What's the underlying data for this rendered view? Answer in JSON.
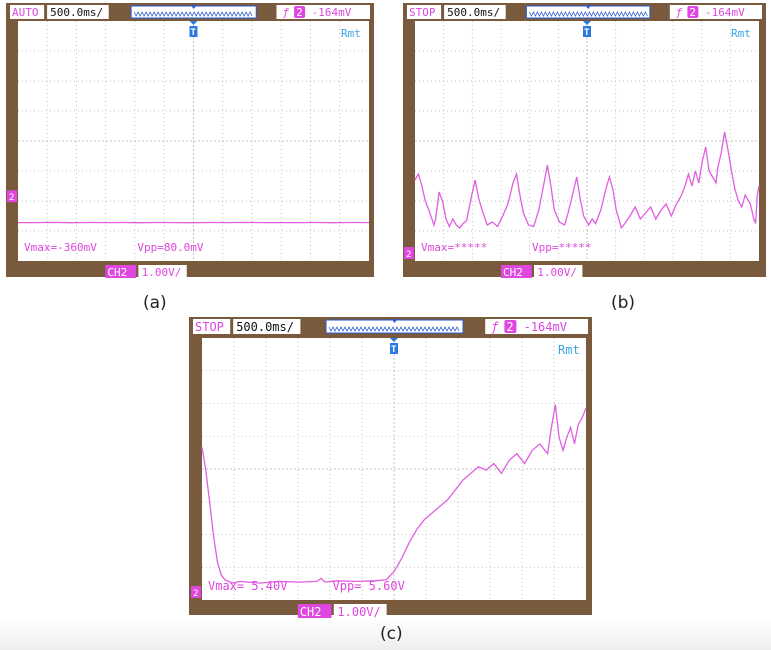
{
  "scopes": [
    {
      "id": "a",
      "status": "AUTO",
      "timebase": "500.0ms/",
      "trigger_level": "-164mV",
      "trigger_source": "2",
      "mode": "Rmt",
      "trigger_marker": "T",
      "channel_marker": "2",
      "vmax_text": "Vmax=-360mV",
      "vpp_text": "Vpp=80.0mV",
      "channel_label": "CH2",
      "channel_scale": "1.00V/",
      "caption": "(a)",
      "waveform": [
        [
          0,
          0.88
        ],
        [
          50,
          0.88
        ],
        [
          100,
          0.885
        ],
        [
          150,
          0.878
        ],
        [
          200,
          0.882
        ],
        [
          250,
          0.88
        ],
        [
          300,
          0.884
        ],
        [
          350,
          0.878
        ],
        [
          400,
          0.882
        ],
        [
          450,
          0.88
        ],
        [
          500,
          0.878
        ],
        [
          550,
          0.882
        ],
        [
          600,
          0.88
        ],
        [
          650,
          0.885
        ],
        [
          700,
          0.879
        ],
        [
          750,
          0.881
        ],
        [
          800,
          0.88
        ],
        [
          850,
          0.883
        ],
        [
          900,
          0.878
        ],
        [
          950,
          0.882
        ],
        [
          1000,
          0.88
        ]
      ]
    },
    {
      "id": "b",
      "status": "STOP",
      "timebase": "500.0ms/",
      "trigger_level": "-164mV",
      "trigger_source": "2",
      "mode": "Rmt",
      "trigger_marker": "T",
      "channel_marker": "2",
      "vmax_text": "Vmax=*****",
      "vpp_text": "Vpp=*****",
      "channel_label": "CH2",
      "channel_scale": "1.00V/",
      "caption": "(b)",
      "waveform": [
        [
          0,
          2.3
        ],
        [
          10,
          2.5
        ],
        [
          20,
          2.1
        ],
        [
          30,
          1.6
        ],
        [
          40,
          1.3
        ],
        [
          55,
          0.8
        ],
        [
          60,
          1.0
        ],
        [
          70,
          1.9
        ],
        [
          80,
          1.6
        ],
        [
          90,
          1.0
        ],
        [
          100,
          0.75
        ],
        [
          110,
          1.0
        ],
        [
          120,
          0.8
        ],
        [
          130,
          0.7
        ],
        [
          140,
          0.85
        ],
        [
          150,
          0.95
        ],
        [
          165,
          1.8
        ],
        [
          175,
          2.3
        ],
        [
          185,
          1.7
        ],
        [
          195,
          1.3
        ],
        [
          210,
          0.8
        ],
        [
          225,
          0.9
        ],
        [
          240,
          0.75
        ],
        [
          255,
          1.1
        ],
        [
          270,
          1.5
        ],
        [
          285,
          2.2
        ],
        [
          295,
          2.5
        ],
        [
          305,
          1.8
        ],
        [
          315,
          1.2
        ],
        [
          330,
          0.8
        ],
        [
          345,
          0.75
        ],
        [
          360,
          1.3
        ],
        [
          375,
          2.2
        ],
        [
          385,
          2.8
        ],
        [
          395,
          2.1
        ],
        [
          405,
          1.3
        ],
        [
          420,
          0.9
        ],
        [
          435,
          0.8
        ],
        [
          445,
          1.2
        ],
        [
          460,
          1.9
        ],
        [
          470,
          2.4
        ],
        [
          480,
          1.7
        ],
        [
          490,
          1.1
        ],
        [
          505,
          0.8
        ],
        [
          515,
          1.0
        ],
        [
          525,
          0.85
        ],
        [
          540,
          1.3
        ],
        [
          555,
          2.0
        ],
        [
          565,
          2.4
        ],
        [
          575,
          2.0
        ],
        [
          585,
          1.3
        ],
        [
          600,
          0.7
        ],
        [
          610,
          0.85
        ],
        [
          625,
          1.1
        ],
        [
          640,
          1.4
        ],
        [
          655,
          1.0
        ],
        [
          670,
          1.2
        ],
        [
          685,
          1.4
        ],
        [
          700,
          1.0
        ],
        [
          715,
          1.3
        ],
        [
          730,
          1.5
        ],
        [
          745,
          1.1
        ],
        [
          760,
          1.5
        ],
        [
          775,
          1.8
        ],
        [
          785,
          2.1
        ],
        [
          795,
          2.5
        ],
        [
          805,
          2.1
        ],
        [
          815,
          2.6
        ],
        [
          825,
          2.2
        ],
        [
          835,
          2.9
        ],
        [
          845,
          3.4
        ],
        [
          855,
          2.6
        ],
        [
          865,
          2.4
        ],
        [
          875,
          2.2
        ],
        [
          880,
          2.7
        ],
        [
          890,
          3.2
        ],
        [
          900,
          3.9
        ],
        [
          910,
          3.3
        ],
        [
          920,
          2.6
        ],
        [
          930,
          2.0
        ],
        [
          940,
          1.6
        ],
        [
          950,
          1.4
        ],
        [
          960,
          1.8
        ],
        [
          975,
          1.5
        ],
        [
          985,
          1.0
        ],
        [
          990,
          0.85
        ],
        [
          995,
          1.8
        ],
        [
          1000,
          2.1
        ]
      ]
    },
    {
      "id": "c",
      "status": "STOP",
      "timebase": "500.0ms/",
      "trigger_level": "-164mV",
      "trigger_source": "2",
      "mode": "Rmt",
      "trigger_marker": "T",
      "channel_marker": "2",
      "vmax_text": "Vmax= 5.40V",
      "vpp_text": "Vpp= 5.60V",
      "channel_label": "CH2",
      "channel_scale": "1.00V/",
      "caption": "(c)",
      "waveform": [
        [
          0,
          4.3
        ],
        [
          10,
          3.6
        ],
        [
          20,
          2.6
        ],
        [
          30,
          1.6
        ],
        [
          40,
          0.8
        ],
        [
          50,
          0.4
        ],
        [
          60,
          0.25
        ],
        [
          80,
          0.15
        ],
        [
          100,
          0.2
        ],
        [
          150,
          0.15
        ],
        [
          200,
          0.2
        ],
        [
          250,
          0.18
        ],
        [
          300,
          0.2
        ],
        [
          310,
          0.3
        ],
        [
          320,
          0.18
        ],
        [
          350,
          0.22
        ],
        [
          400,
          0.2
        ],
        [
          450,
          0.22
        ],
        [
          480,
          0.25
        ],
        [
          500,
          0.5
        ],
        [
          520,
          0.9
        ],
        [
          540,
          1.4
        ],
        [
          560,
          1.8
        ],
        [
          580,
          2.1
        ],
        [
          600,
          2.3
        ],
        [
          620,
          2.5
        ],
        [
          640,
          2.7
        ],
        [
          660,
          3.0
        ],
        [
          680,
          3.3
        ],
        [
          700,
          3.5
        ],
        [
          720,
          3.7
        ],
        [
          740,
          3.6
        ],
        [
          760,
          3.8
        ],
        [
          780,
          3.5
        ],
        [
          800,
          3.9
        ],
        [
          820,
          4.1
        ],
        [
          840,
          3.8
        ],
        [
          860,
          4.2
        ],
        [
          880,
          4.4
        ],
        [
          900,
          4.1
        ],
        [
          910,
          4.9
        ],
        [
          920,
          5.6
        ],
        [
          930,
          4.6
        ],
        [
          940,
          4.2
        ],
        [
          950,
          4.6
        ],
        [
          960,
          4.9
        ],
        [
          970,
          4.4
        ],
        [
          980,
          5.0
        ],
        [
          990,
          5.2
        ],
        [
          1000,
          5.5
        ]
      ]
    }
  ],
  "colors": {
    "screen": "#ffffff",
    "bezel": "#7a5a3c",
    "trace": "#e05ee0",
    "grid": "#b4b4b4",
    "header_text": "#e046e0",
    "timebase_bg": "#ffffff",
    "marker_blue": "#2a7be0",
    "rmt": "#3aa5e6"
  }
}
